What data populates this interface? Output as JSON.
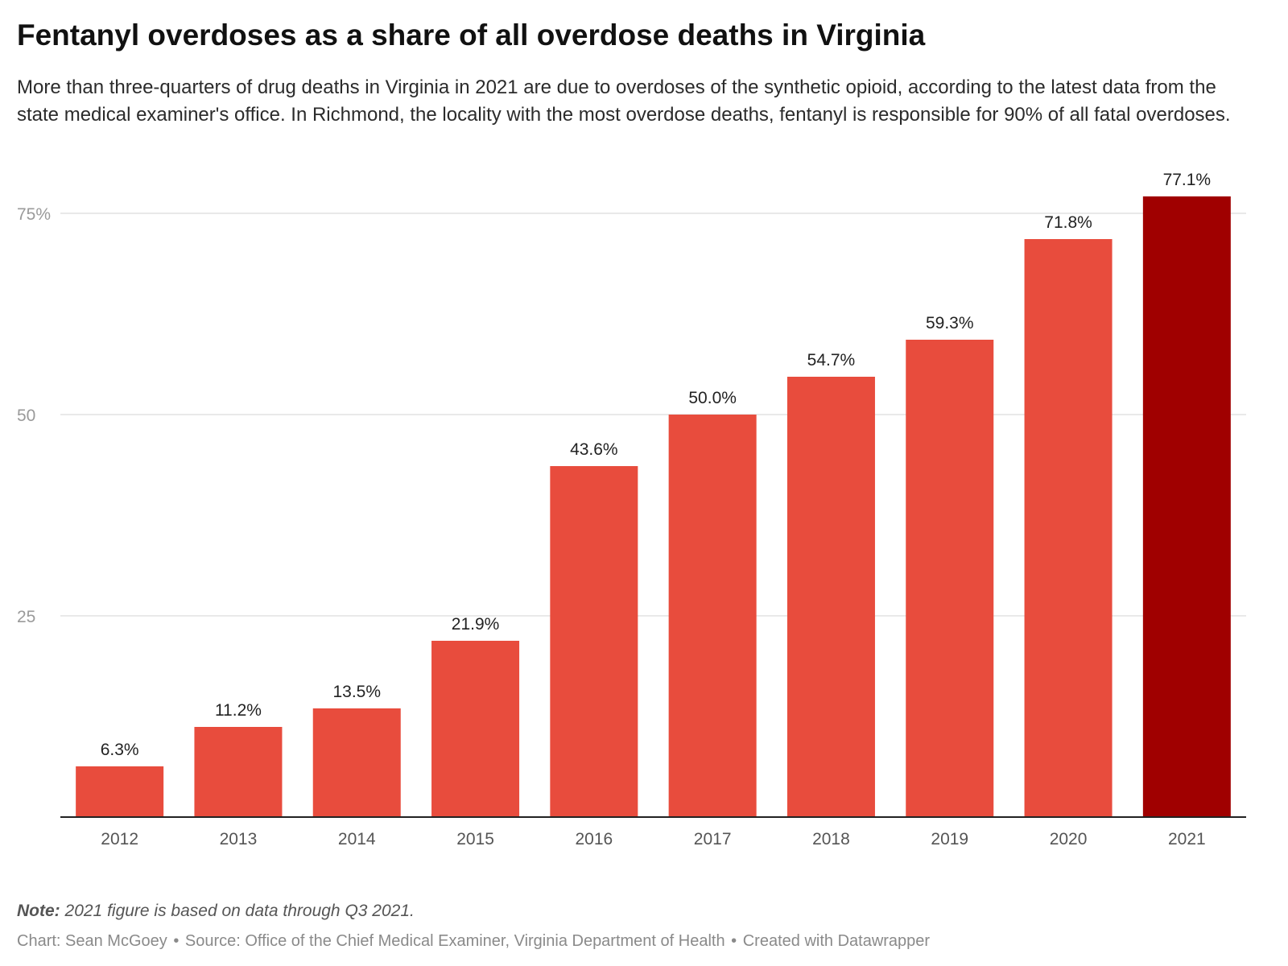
{
  "header": {
    "title": "Fentanyl overdoses as a share of all overdose deaths in Virginia",
    "subtitle": "More than three-quarters of drug deaths in Virginia in 2021 are due to overdoses of the synthetic opioid, according to the latest data from the state medical examiner's office. In Richmond, the locality with the most overdose deaths, fentanyl is responsible for 90% of all fatal overdoses."
  },
  "chart_data": {
    "type": "bar",
    "categories": [
      "2012",
      "2013",
      "2014",
      "2015",
      "2016",
      "2017",
      "2018",
      "2019",
      "2020",
      "2021"
    ],
    "values": [
      6.3,
      11.2,
      13.5,
      21.9,
      43.6,
      50.0,
      54.7,
      59.3,
      71.8,
      77.1
    ],
    "value_labels": [
      "6.3%",
      "11.2%",
      "13.5%",
      "21.9%",
      "43.6%",
      "50.0%",
      "54.7%",
      "59.3%",
      "71.8%",
      "77.1%"
    ],
    "ylim": [
      0,
      77.1
    ],
    "y_ticks": [
      25,
      50,
      75
    ],
    "y_tick_labels": [
      "25",
      "50",
      "75%"
    ],
    "grid": true,
    "colors": {
      "bar": "#e84c3d",
      "highlight": "#a00000",
      "grid": "#e2e2e2",
      "tick_label": "#9a9a9a",
      "axis": "#222222"
    },
    "highlight_category": "2021"
  },
  "footnotes": {
    "note_label": "Note:",
    "note_text": "2021 figure is based on data through Q3 2021.",
    "chart_credit": "Chart: Sean McGoey",
    "separator": "•",
    "source": "Source: Office of the Chief Medical Examiner, Virginia Department of Health",
    "created_with": "Created with Datawrapper"
  }
}
